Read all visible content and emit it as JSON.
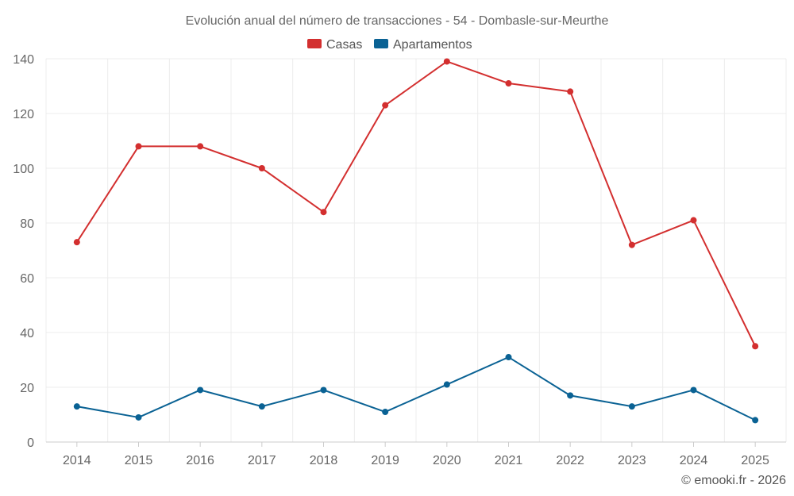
{
  "chart_data": {
    "type": "line",
    "title": "Evolución anual del número de transacciones - 54 - Dombasle-sur-Meurthe",
    "categories": [
      "2014",
      "2015",
      "2016",
      "2017",
      "2018",
      "2019",
      "2020",
      "2021",
      "2022",
      "2023",
      "2024",
      "2025"
    ],
    "series": [
      {
        "name": "Casas",
        "color": "#d32f2f",
        "values": [
          73,
          108,
          108,
          100,
          84,
          123,
          139,
          131,
          128,
          72,
          81,
          35
        ]
      },
      {
        "name": "Apartamentos",
        "color": "#0a6294",
        "values": [
          13,
          9,
          19,
          13,
          19,
          11,
          21,
          31,
          17,
          13,
          19,
          8
        ]
      }
    ],
    "yticks": [
      0,
      20,
      40,
      60,
      80,
      100,
      120,
      140
    ],
    "ylim": [
      0,
      140
    ],
    "grid": true,
    "legend": "top-center",
    "xlabel": "",
    "ylabel": ""
  },
  "credit": "© emooki.fr - 2026"
}
